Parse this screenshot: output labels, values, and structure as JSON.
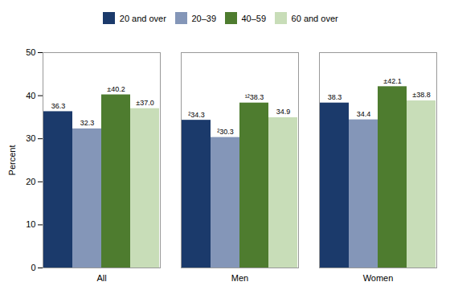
{
  "chart_data": {
    "type": "bar",
    "categories": [
      "All",
      "Men",
      "Women"
    ],
    "series": [
      {
        "name": "20 and over",
        "color": "#1b3a6b",
        "values": [
          36.3,
          34.3,
          38.3
        ],
        "value_labels": [
          "36.3",
          "²34.3",
          "38.3"
        ]
      },
      {
        "name": "20–39",
        "color": "#8496b8",
        "values": [
          32.3,
          30.3,
          34.4
        ],
        "value_labels": [
          "32.3",
          "²30.3",
          "34.4"
        ]
      },
      {
        "name": "40–59",
        "color": "#4e7c2f",
        "values": [
          40.2,
          38.3,
          42.1
        ],
        "value_labels": [
          "±40.2",
          "¹²38.3",
          "±42.1"
        ]
      },
      {
        "name": "60 and over",
        "color": "#c8ddb8",
        "values": [
          37.0,
          34.9,
          38.8
        ],
        "value_labels": [
          "±37.0",
          "34.9",
          "±38.8"
        ]
      }
    ],
    "ylabel": "Percent",
    "ylim": [
      0,
      50
    ],
    "yticks": [
      0,
      10,
      20,
      30,
      40,
      50
    ],
    "grid": false,
    "legend": "top",
    "data_labels": true
  }
}
